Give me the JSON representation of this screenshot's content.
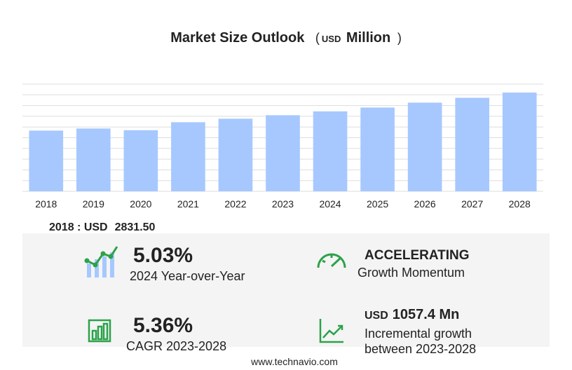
{
  "chart_data": {
    "type": "bar",
    "title": "Market Size Outlook",
    "title_unit": [
      "(",
      "USD",
      "Million",
      ")"
    ],
    "categories": [
      "2018",
      "2019",
      "2020",
      "2021",
      "2022",
      "2023",
      "2024",
      "2025",
      "2026",
      "2027",
      "2028"
    ],
    "values": [
      2831.5,
      2929,
      2850,
      3222,
      3385,
      3548,
      3727,
      3906,
      4134,
      4361,
      4605
    ],
    "color": "#a6c8ff",
    "ylim": [
      0,
      5000
    ],
    "yticks": [
      0,
      500,
      1000,
      1500,
      2000,
      2500,
      3000,
      3500,
      4000,
      4500,
      5000
    ],
    "grid": true
  },
  "base_year": {
    "label": "2018 : USD",
    "value": "2831.50"
  },
  "metrics": [
    {
      "value": "5.03%",
      "label": "2024 Year-over-Year"
    },
    {
      "value": "ACCELERATING",
      "label": "Growth Momentum"
    },
    {
      "value": "5.36%",
      "label": "CAGR 2023-2028"
    },
    {
      "unit": "USD",
      "value": "1057.4 Mn",
      "label": [
        "Incremental growth",
        "between 2023-2028"
      ]
    }
  ],
  "footer": "www.technavio.com"
}
